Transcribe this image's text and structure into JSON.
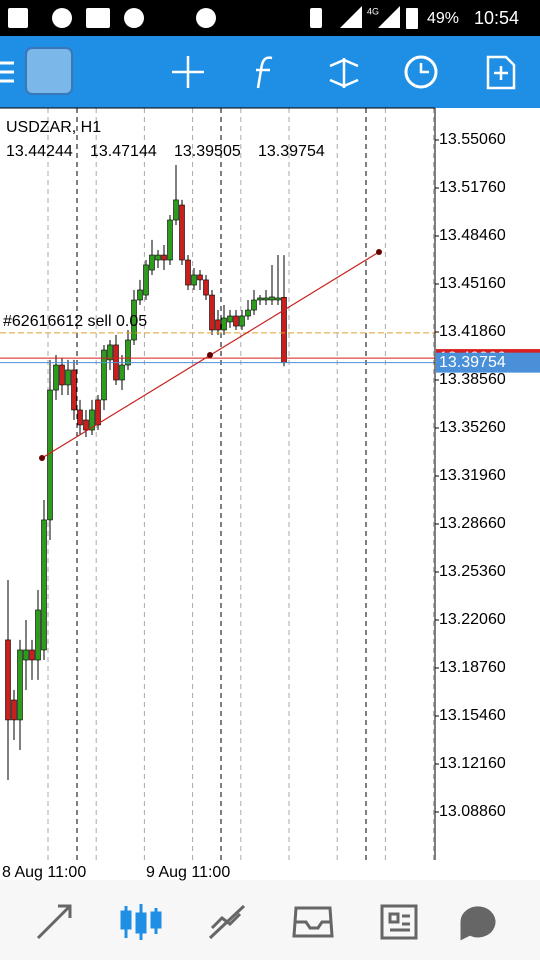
{
  "status_bar": {
    "network": "4G",
    "battery": "49%",
    "time": "10:54"
  },
  "chart_data": {
    "type": "candlestick",
    "title": "USDZAR, H1",
    "categories": [
      "8 Aug 11:00",
      null,
      null,
      null,
      null,
      null,
      null,
      null,
      null,
      null,
      null,
      null,
      null,
      null,
      null,
      null,
      null,
      null,
      null,
      null,
      null,
      null,
      null,
      null,
      "9 Aug 11:00",
      null,
      null,
      null,
      null,
      null,
      null,
      null,
      null,
      null,
      null,
      null,
      null,
      null,
      null,
      null,
      null,
      null,
      null,
      null,
      null,
      null,
      null
    ],
    "open": [
      13.2069,
      13.1656,
      13.1519,
      13.1931,
      13.2,
      13.1931,
      13.2,
      13.2894,
      13.3787,
      13.3959,
      13.3822,
      13.3925,
      13.365,
      13.3581,
      13.3512,
      13.3719,
      13.3719,
      13.3994,
      13.4097,
      13.3856,
      13.3959,
      13.4131,
      13.4406,
      13.444,
      13.4612,
      13.4681,
      13.4715,
      13.4681,
      13.4956,
      13.5059,
      13.4681,
      13.4509,
      13.4578,
      13.4544,
      13.444,
      13.4269,
      13.42,
      13.4255,
      13.4296,
      13.4227,
      13.4296,
      13.4337,
      13.4406,
      13.4406,
      13.4406,
      13.4406,
      13.44244
    ],
    "high": [
      13.2481,
      13.1725,
      13.2069,
      13.2206,
      13.2069,
      13.2412,
      13.3031,
      13.3994,
      13.4028,
      13.4007,
      13.3994,
      13.3994,
      13.3719,
      13.365,
      13.3719,
      13.3753,
      13.4097,
      13.4131,
      13.4165,
      13.4028,
      13.42,
      13.4475,
      13.4544,
      13.4681,
      13.4819,
      13.475,
      13.4784,
      13.499,
      13.5334,
      13.5094,
      13.4715,
      13.4626,
      13.4612,
      13.4578,
      13.4475,
      13.4337,
      13.4372,
      13.4337,
      13.4337,
      13.4337,
      13.4406,
      13.4475,
      13.444,
      13.4475,
      13.4647,
      13.4715,
      13.47144
    ],
    "low": [
      13.1106,
      13.1381,
      13.1312,
      13.1725,
      13.1794,
      13.1794,
      13.1931,
      13.2756,
      13.3719,
      13.3753,
      13.3753,
      13.3581,
      13.3478,
      13.3464,
      13.3478,
      13.3512,
      13.365,
      13.3925,
      13.3822,
      13.3787,
      13.3925,
      13.4097,
      13.4372,
      13.4406,
      13.4578,
      13.4626,
      13.4612,
      13.4647,
      13.4922,
      13.4647,
      13.4475,
      13.4475,
      13.4475,
      13.4406,
      13.4165,
      13.4165,
      13.4165,
      13.4214,
      13.42,
      13.42,
      13.4269,
      13.4303,
      13.4372,
      13.4372,
      13.4372,
      13.4372,
      13.39505
    ],
    "close": [
      13.1519,
      13.1519,
      13.2,
      13.2,
      13.1931,
      13.2275,
      13.2894,
      13.3787,
      13.3959,
      13.3822,
      13.3925,
      13.365,
      13.3547,
      13.3512,
      13.365,
      13.3547,
      13.4062,
      13.4097,
      13.3856,
      13.3959,
      13.4131,
      13.4406,
      13.4475,
      13.4647,
      13.4715,
      13.4715,
      13.4681,
      13.4956,
      13.5094,
      13.4681,
      13.4509,
      13.4578,
      13.4544,
      13.444,
      13.42,
      13.42,
      13.4282,
      13.4296,
      13.4227,
      13.4296,
      13.4337,
      13.4406,
      13.442,
      13.442,
      13.4427,
      13.442,
      13.39754
    ],
    "up_color": "#2e9b1e",
    "down_color": "#c8201c",
    "ylim": [
      13.0556,
      13.5726
    ],
    "yticks": [
      {
        "value": 13.5506,
        "label": "13.55060"
      },
      {
        "value": 13.5176,
        "label": "13.51760"
      },
      {
        "value": 13.4846,
        "label": "13.48460"
      },
      {
        "value": 13.4516,
        "label": "13.45160"
      },
      {
        "value": 13.4186,
        "label": "13.41860"
      },
      {
        "value": 13.3856,
        "label": "13.38560"
      },
      {
        "value": 13.3526,
        "label": "13.35260"
      },
      {
        "value": 13.3196,
        "label": "13.31960"
      },
      {
        "value": 13.2866,
        "label": "13.28660"
      },
      {
        "value": 13.2536,
        "label": "13.25360"
      },
      {
        "value": 13.2206,
        "label": "13.22060"
      },
      {
        "value": 13.1876,
        "label": "13.18760"
      },
      {
        "value": 13.1546,
        "label": "13.15460"
      },
      {
        "value": 13.1216,
        "label": "13.12160"
      },
      {
        "value": 13.0886,
        "label": "13.08860"
      }
    ],
    "grid": true,
    "bid": 13.39754,
    "bid_color": "#4a90d9",
    "ask": 13.40066,
    "ask_color": "#d81e1e",
    "order": {
      "label": "#62616612 sell 0.05",
      "price": 13.418,
      "color": "#e0a030"
    }
  }
}
